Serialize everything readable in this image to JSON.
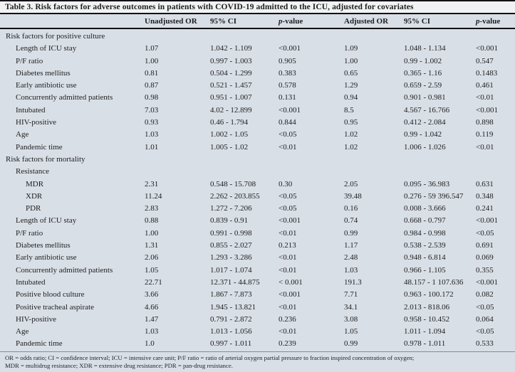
{
  "table": {
    "title": "Table 3. Risk factors for adverse outcomes in patients with COVID-19 admitted to the ICU, adjusted for covariates",
    "columns": [
      {
        "label": "Unadjusted OR"
      },
      {
        "label": "95% CI"
      },
      {
        "italic_prefix": "p",
        "label": "-value"
      },
      {
        "label": "Adjusted OR"
      },
      {
        "label": "95% CI"
      },
      {
        "italic_prefix": "p",
        "label": "-value"
      }
    ],
    "rows": [
      {
        "label": "Risk factors for positive culture",
        "indent": 0,
        "section": true,
        "values": []
      },
      {
        "label": "Length of ICU stay",
        "indent": 1,
        "values": [
          "1.07",
          "1.042 - 1.109",
          "<0.001",
          "1.09",
          "1.048 - 1.134",
          "<0.001"
        ]
      },
      {
        "label": "P/F ratio",
        "indent": 1,
        "values": [
          "1.00",
          "0.997 - 1.003",
          "0.905",
          "1.00",
          "0.99 - 1.002",
          "0.547"
        ]
      },
      {
        "label": "Diabetes mellitus",
        "indent": 1,
        "values": [
          "0.81",
          "0.504 - 1.299",
          "0.383",
          "0.65",
          "0.365 - 1.16",
          "0.1483"
        ]
      },
      {
        "label": "Early antibiotic use",
        "indent": 1,
        "values": [
          "0.87",
          "0.521 - 1.457",
          "0.578",
          "1.29",
          "0.659 - 2.59",
          "0.461"
        ]
      },
      {
        "label": "Concurrently admitted patients",
        "indent": 1,
        "values": [
          "0.98",
          "0.951 - 1.007",
          "0.131",
          "0.94",
          "0.901 - 0.981",
          "<0.01"
        ]
      },
      {
        "label": "Intubated",
        "indent": 1,
        "values": [
          "7.03",
          "4.02 - 12.899",
          "<0.001",
          "8.5",
          "4.567 - 16.766",
          "<0.001"
        ]
      },
      {
        "label": "HIV-positive",
        "indent": 1,
        "values": [
          "0.93",
          "0.46 - 1.794",
          "0.844",
          "0.95",
          "0.412 - 2.084",
          "0.898"
        ]
      },
      {
        "label": "Age",
        "indent": 1,
        "values": [
          "1.03",
          "1.002 - 1.05",
          "<0.05",
          "1.02",
          "0.99 - 1.042",
          "0.119"
        ]
      },
      {
        "label": "Pandemic time",
        "indent": 1,
        "values": [
          "1.01",
          "1.005 - 1.02",
          "<0.01",
          "1.02",
          "1.006 - 1.026",
          "<0.01"
        ]
      },
      {
        "label": "Risk factors for mortality",
        "indent": 0,
        "section": true,
        "values": []
      },
      {
        "label": "Resistance",
        "indent": 1,
        "section": true,
        "values": []
      },
      {
        "label": "MDR",
        "indent": 2,
        "values": [
          "2.31",
          "0.548 - 15.708",
          "0.30",
          "2.05",
          "0.095 - 36.983",
          "0.631"
        ]
      },
      {
        "label": "XDR",
        "indent": 2,
        "values": [
          "11.24",
          "2.262 - 203.855",
          "<0.05",
          "39.48",
          "0.276 - 59 396.547",
          "0.348"
        ]
      },
      {
        "label": "PDR",
        "indent": 2,
        "values": [
          "2.83",
          "1.272 - 7.206",
          "<0.05",
          "0.16",
          "0.008 - 3.666",
          "0.241"
        ]
      },
      {
        "label": "Length of ICU stay",
        "indent": 1,
        "values": [
          "0.88",
          "0.839 - 0.91",
          "<0.001",
          "0.74",
          "0.668 - 0.797",
          "<0.001"
        ]
      },
      {
        "label": "P/F ratio",
        "indent": 1,
        "values": [
          "1.00",
          "0.991 - 0.998",
          "<0.01",
          "0.99",
          "0.984 - 0.998",
          "<0.05"
        ]
      },
      {
        "label": "Diabetes mellitus",
        "indent": 1,
        "values": [
          "1.31",
          "0.855 - 2.027",
          "0.213",
          "1.17",
          "0.538 - 2.539",
          "0.691"
        ]
      },
      {
        "label": "Early antibiotic use",
        "indent": 1,
        "values": [
          "2.06",
          "1.293 - 3.286",
          "<0.01",
          "2.48",
          "0.948 - 6.814",
          "0.069"
        ]
      },
      {
        "label": "Concurrently admitted patients",
        "indent": 1,
        "values": [
          "1.05",
          "1.017 - 1.074",
          "<0.01",
          "1.03",
          "0.966 - 1.105",
          "0.355"
        ]
      },
      {
        "label": "Intubated",
        "indent": 1,
        "values": [
          "22.71",
          "12.371 - 44.875",
          "< 0.001",
          "191.3",
          "48.157 - 1 107.636",
          "<0.001"
        ]
      },
      {
        "label": "Positive blood culture",
        "indent": 1,
        "values": [
          "3.66",
          "1.867 - 7.873",
          "<0.001",
          "7.71",
          "0.963 - 100.172",
          "0.082"
        ]
      },
      {
        "label": "Positive tracheal aspirate",
        "indent": 1,
        "values": [
          "4.66",
          "1.945 - 13.821",
          "<0.01",
          "34.1",
          "2.013 - 818.06",
          "<0.05"
        ]
      },
      {
        "label": "HIV-positive",
        "indent": 1,
        "values": [
          "1.47",
          "0.791 - 2.872",
          "0.236",
          "3.08",
          "0.958 - 10.452",
          "0.064"
        ]
      },
      {
        "label": "Age",
        "indent": 1,
        "values": [
          "1.03",
          "1.013 - 1.056",
          "<0.01",
          "1.05",
          "1.011 - 1.094",
          "<0.05"
        ]
      },
      {
        "label": "Pandemic time",
        "indent": 1,
        "values": [
          "1.0",
          "0.997 - 1.011",
          "0.239",
          "0.99",
          "0.978 - 1.011",
          "0.533"
        ]
      }
    ],
    "footnotes": [
      "OR = odds ratio; CI = confidence interval; ICU = intensive care unit; P/F ratio = ratio of arterial oxygen partial pressure to fraction inspired concentration of oxygen;",
      "MDR = multidrug resistance; XDR = extensive drug resistance; PDR = pan-drug resistance."
    ],
    "colors": {
      "page_bg": "#d9dfe7",
      "title_bg": "#f1f2f3",
      "rule": "#111111",
      "text": "#1e1e1e"
    }
  }
}
